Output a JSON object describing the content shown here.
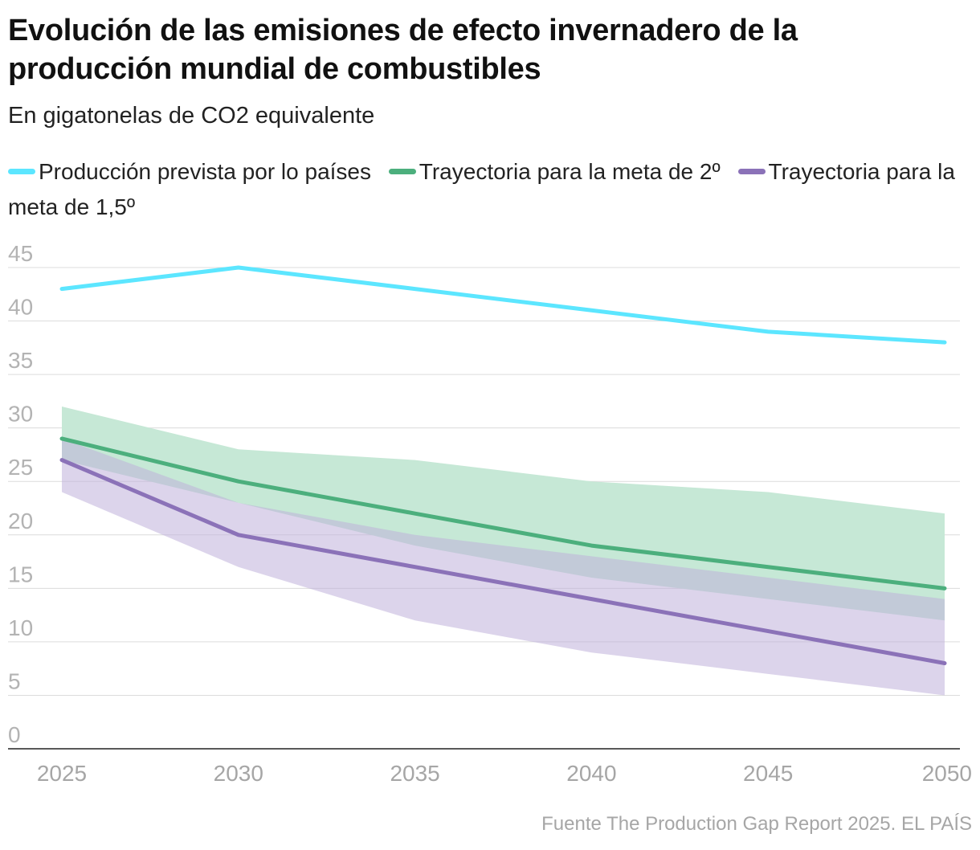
{
  "chart_data": {
    "type": "line",
    "title": "Evolución de las emisiones de efecto invernadero de la producción mundial de combustibles",
    "subtitle": "En gigatonelas de CO2 equivalente",
    "x": [
      2025,
      2030,
      2035,
      2040,
      2045,
      2050
    ],
    "x_tick_labels": [
      "2025",
      "2030",
      "2035",
      "2040",
      "2045",
      "2050"
    ],
    "y_ticks": [
      0,
      5,
      10,
      15,
      20,
      25,
      30,
      35,
      40,
      45
    ],
    "ylim": [
      0,
      45
    ],
    "series": [
      {
        "name": "Producción prevista por lo países",
        "color": "#5ce6ff",
        "values": [
          43,
          45,
          43,
          41,
          39,
          38
        ]
      },
      {
        "name": "Trayectoria para la meta de 2º",
        "color": "#4caf7d",
        "values": [
          29,
          25,
          22,
          19,
          17,
          15
        ],
        "band_lower": [
          27,
          23,
          19,
          16,
          14,
          12
        ],
        "band_upper": [
          32,
          28,
          27,
          25,
          24,
          22
        ],
        "band_color": "#c6e8d6"
      },
      {
        "name": "Trayectoria para la meta de 1,5º",
        "color": "#8b72b8",
        "values": [
          27,
          20,
          17,
          14,
          11,
          8
        ],
        "band_lower": [
          24,
          17,
          12,
          9,
          7,
          5
        ],
        "band_upper": [
          29,
          23,
          20,
          18,
          16,
          14
        ],
        "band_color": "#bfb0da"
      }
    ],
    "source": "Fuente The Production Gap Report 2025. EL PAÍS",
    "legend_position": "top"
  }
}
